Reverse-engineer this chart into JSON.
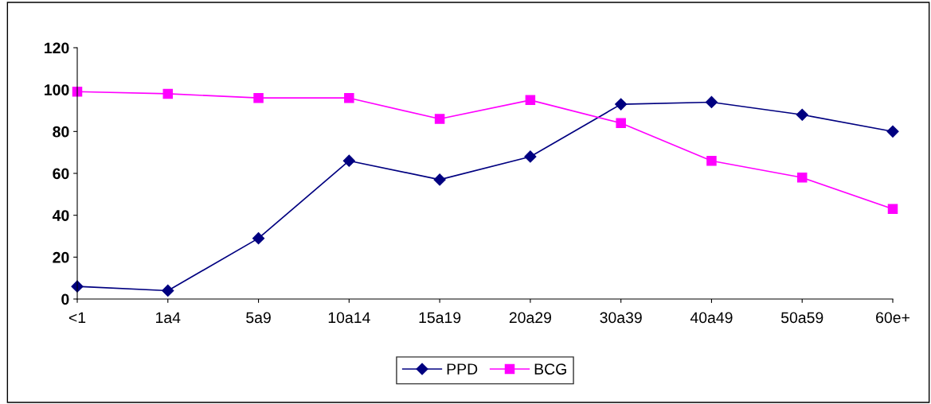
{
  "chart_data": {
    "type": "line",
    "categories": [
      "<1",
      "1a4",
      "5a9",
      "10a14",
      "15a19",
      "20a29",
      "30a39",
      "40a49",
      "50a59",
      "60e+"
    ],
    "series": [
      {
        "name": "PPD",
        "color": "#000080",
        "marker": "diamond",
        "values": [
          6,
          4,
          29,
          66,
          57,
          68,
          93,
          94,
          88,
          80
        ]
      },
      {
        "name": "BCG",
        "color": "#ff00ff",
        "marker": "square",
        "values": [
          99,
          98,
          96,
          96,
          86,
          95,
          84,
          66,
          58,
          43
        ]
      }
    ],
    "ylim": [
      0,
      120
    ],
    "yticks": [
      0,
      20,
      40,
      60,
      80,
      100,
      120
    ],
    "grid": false,
    "legend": "bottom",
    "line_style": "solid"
  }
}
